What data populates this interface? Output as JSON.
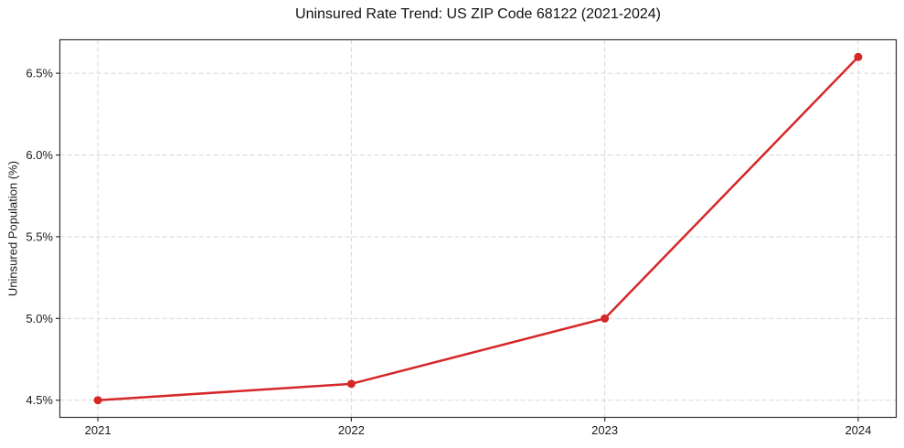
{
  "chart_data": {
    "type": "line",
    "title": "Uninsured Rate Trend: US ZIP Code 68122 (2021-2024)",
    "xlabel": "",
    "ylabel": "Uninsured Population (%)",
    "x": [
      2021,
      2022,
      2023,
      2024
    ],
    "values": [
      4.5,
      4.6,
      5.0,
      6.6
    ],
    "xlim": [
      2020.85,
      2024.15
    ],
    "ylim": [
      4.395,
      6.705
    ],
    "xticks": {
      "values": [
        2021,
        2022,
        2023,
        2024
      ],
      "labels": [
        "2021",
        "2022",
        "2023",
        "2024"
      ]
    },
    "yticks": {
      "values": [
        4.5,
        5.0,
        5.5,
        6.0,
        6.5
      ],
      "labels": [
        "4.5%",
        "5.0%",
        "5.5%",
        "6.0%",
        "6.5%"
      ]
    },
    "grid": true,
    "grid_style": "dashed",
    "legend": false,
    "line_width": 2.5,
    "marker": "circle",
    "marker_radius": 4.5,
    "colors": {
      "line": "#d62728",
      "marker": "#d62728",
      "grid": "#d6d6d6",
      "spine": "#333333",
      "tick_text": "#1a1a1a",
      "title_text": "#111111",
      "background": "#ffffff"
    }
  }
}
